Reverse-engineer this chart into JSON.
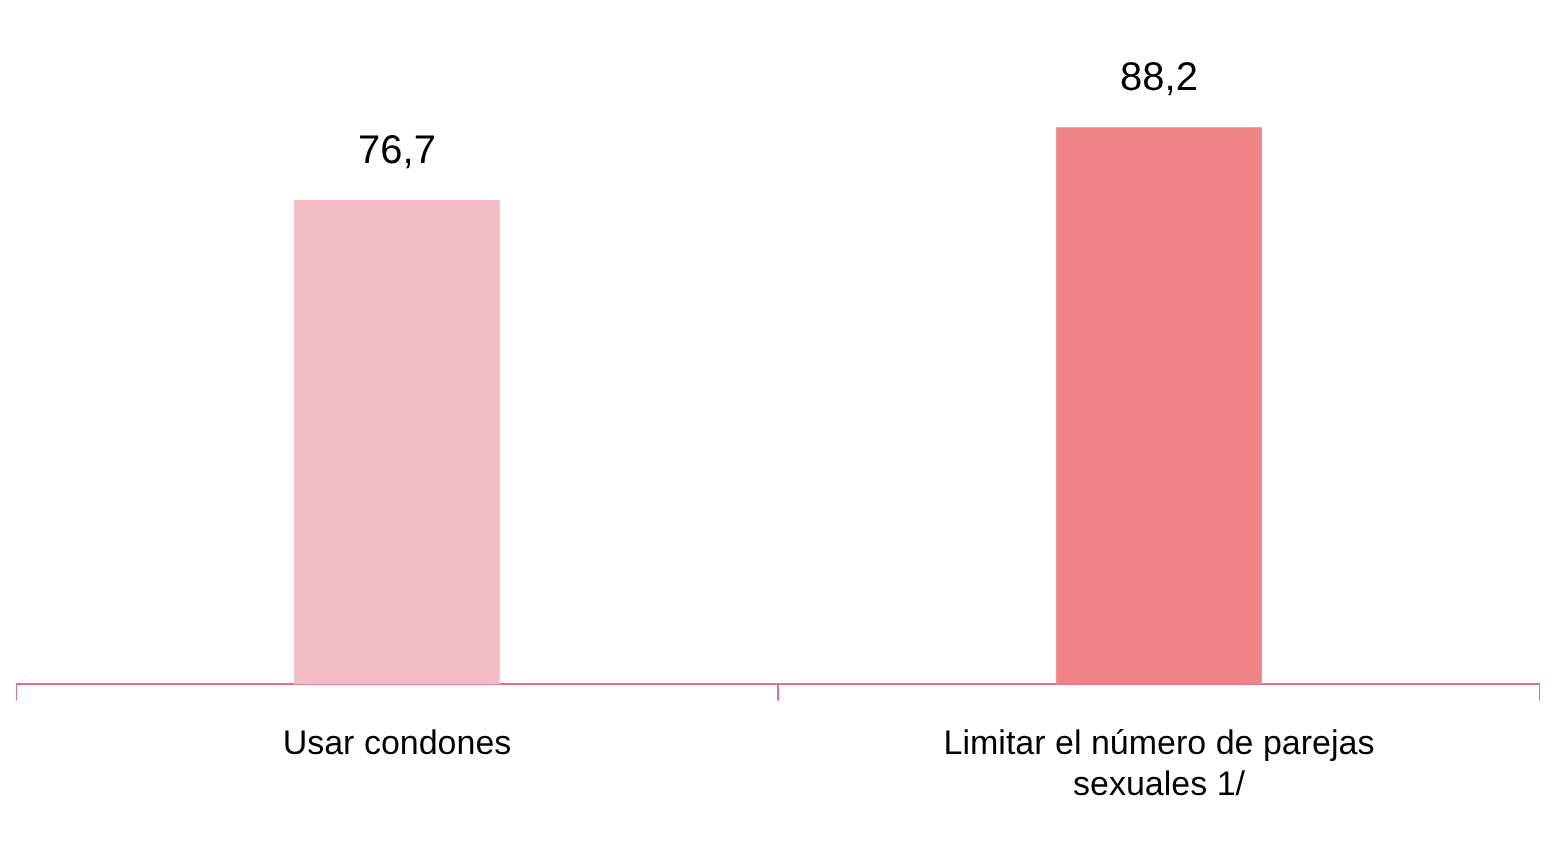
{
  "chart_data": {
    "type": "bar",
    "categories": [
      "Usar condones",
      "Limitar el número de parejas sexuales 1/"
    ],
    "values": [
      76.7,
      88.2
    ],
    "colors": [
      "#f4bcc4",
      "#f08484"
    ],
    "value_labels": [
      "76,7",
      "88,2"
    ],
    "grid": false,
    "legend": false
  }
}
